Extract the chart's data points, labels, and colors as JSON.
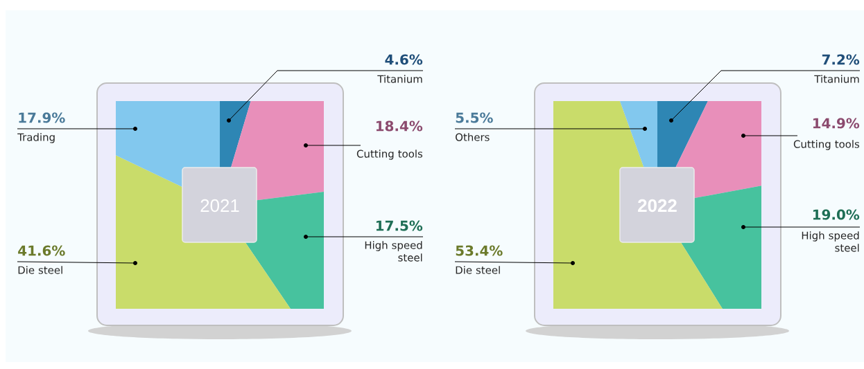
{
  "chart_data": [
    {
      "type": "pie",
      "title": "2021",
      "categories": [
        "Titanium",
        "Cutting tools",
        "High speed steel",
        "Die steel",
        "Trading"
      ],
      "values": [
        4.6,
        18.4,
        17.5,
        41.6,
        17.9
      ],
      "value_labels": [
        "4.6%",
        "18.4%",
        "17.5%",
        "41.6%",
        "17.9%"
      ],
      "colors": [
        "#2e86b4",
        "#e88fba",
        "#47c29e",
        "#c9dc6a",
        "#82c8ee"
      ]
    },
    {
      "type": "pie",
      "title": "2022",
      "categories": [
        "Titanium",
        "Cutting tools",
        "High speed steel",
        "Die steel",
        "Others"
      ],
      "values": [
        7.2,
        14.9,
        19.0,
        53.4,
        5.5
      ],
      "value_labels": [
        "7.2%",
        "14.9%",
        "19.0%",
        "53.4%",
        "5.5%"
      ],
      "colors": [
        "#2e86b4",
        "#e88fba",
        "#47c29e",
        "#c9dc6a",
        "#82c8ee"
      ]
    }
  ]
}
